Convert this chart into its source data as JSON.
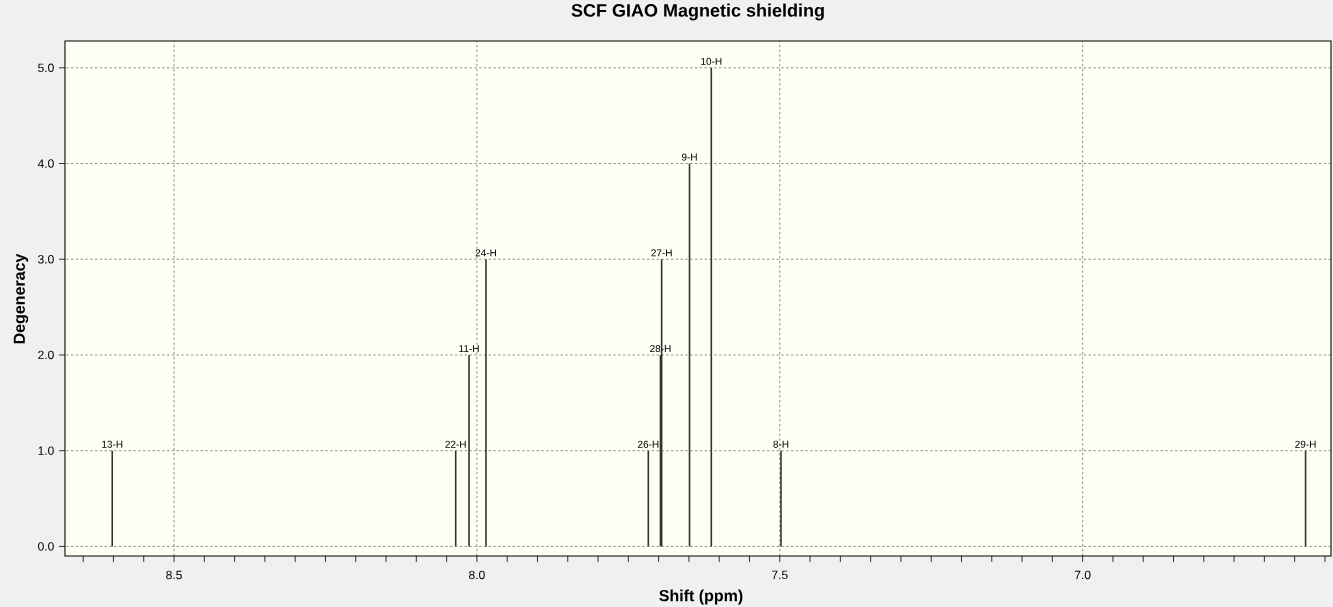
{
  "chart_data": {
    "type": "bar",
    "title": "SCF GIAO Magnetic shielding",
    "xlabel": "Shift (ppm)",
    "ylabel": "Degeneracy",
    "x": [
      6.632,
      7.498,
      7.613,
      7.649,
      7.695,
      7.697,
      7.717,
      7.985,
      8.013,
      8.035,
      8.602
    ],
    "values": [
      1,
      1,
      5,
      4,
      3,
      2,
      1,
      3,
      2,
      1,
      1
    ],
    "color": "#333333",
    "xlim": [
      8.68,
      6.59
    ],
    "ylim": [
      -0.1,
      5.28
    ],
    "xticks": [
      {
        "value": 8.65,
        "label": null
      },
      {
        "value": 8.6,
        "label": null
      },
      {
        "value": 8.55,
        "label": null
      },
      {
        "value": 8.5,
        "label": "8.5"
      },
      {
        "value": 8.45,
        "label": null
      },
      {
        "value": 8.4,
        "label": null
      },
      {
        "value": 8.35,
        "label": null
      },
      {
        "value": 8.3,
        "label": null
      },
      {
        "value": 8.25,
        "label": null
      },
      {
        "value": 8.2,
        "label": null
      },
      {
        "value": 8.15,
        "label": null
      },
      {
        "value": 8.1,
        "label": null
      },
      {
        "value": 8.05,
        "label": null
      },
      {
        "value": 8,
        "label": "8.0"
      },
      {
        "value": 7.95,
        "label": null
      },
      {
        "value": 7.9,
        "label": null
      },
      {
        "value": 7.85,
        "label": null
      },
      {
        "value": 7.8,
        "label": null
      },
      {
        "value": 7.75,
        "label": null
      },
      {
        "value": 7.7,
        "label": null
      },
      {
        "value": 7.65,
        "label": null
      },
      {
        "value": 7.6,
        "label": null
      },
      {
        "value": 7.55,
        "label": null
      },
      {
        "value": 7.5,
        "label": "7.5"
      },
      {
        "value": 7.45,
        "label": null
      },
      {
        "value": 7.4,
        "label": null
      },
      {
        "value": 7.35,
        "label": null
      },
      {
        "value": 7.3,
        "label": null
      },
      {
        "value": 7.25,
        "label": null
      },
      {
        "value": 7.2,
        "label": null
      },
      {
        "value": 7.15,
        "label": null
      },
      {
        "value": 7.1,
        "label": null
      },
      {
        "value": 7.05,
        "label": null
      },
      {
        "value": 7,
        "label": "7.0"
      },
      {
        "value": 6.95,
        "label": null
      },
      {
        "value": 6.9,
        "label": null
      },
      {
        "value": 6.85,
        "label": null
      },
      {
        "value": 6.8,
        "label": null
      },
      {
        "value": 6.75,
        "label": null
      },
      {
        "value": 6.7,
        "label": null
      },
      {
        "value": 6.65,
        "label": null
      },
      {
        "value": 6.6,
        "label": null
      }
    ],
    "yticks": [
      {
        "value": 0,
        "label": "0.0"
      },
      {
        "value": 1,
        "label": "1.0"
      },
      {
        "value": 2,
        "label": "2.0"
      },
      {
        "value": 3,
        "label": "3.0"
      },
      {
        "value": 4,
        "label": "4.0"
      },
      {
        "value": 5,
        "label": "5.0"
      }
    ],
    "grid": true,
    "annotations": [
      {
        "text": "13-H",
        "x": 8.602,
        "y": 1
      },
      {
        "text": "22-H",
        "x": 8.035,
        "y": 1
      },
      {
        "text": "11-H",
        "x": 8.013,
        "y": 2
      },
      {
        "text": "24-H",
        "x": 7.985,
        "y": 3
      },
      {
        "text": "26-H",
        "x": 7.717,
        "y": 1
      },
      {
        "text": "28-H",
        "x": 7.697,
        "y": 2
      },
      {
        "text": "27-H",
        "x": 7.695,
        "y": 3
      },
      {
        "text": "9-H",
        "x": 7.649,
        "y": 4
      },
      {
        "text": "10-H",
        "x": 7.613,
        "y": 5
      },
      {
        "text": "8-H",
        "x": 7.498,
        "y": 1
      },
      {
        "text": "29-H",
        "x": 6.632,
        "y": 1
      }
    ]
  }
}
